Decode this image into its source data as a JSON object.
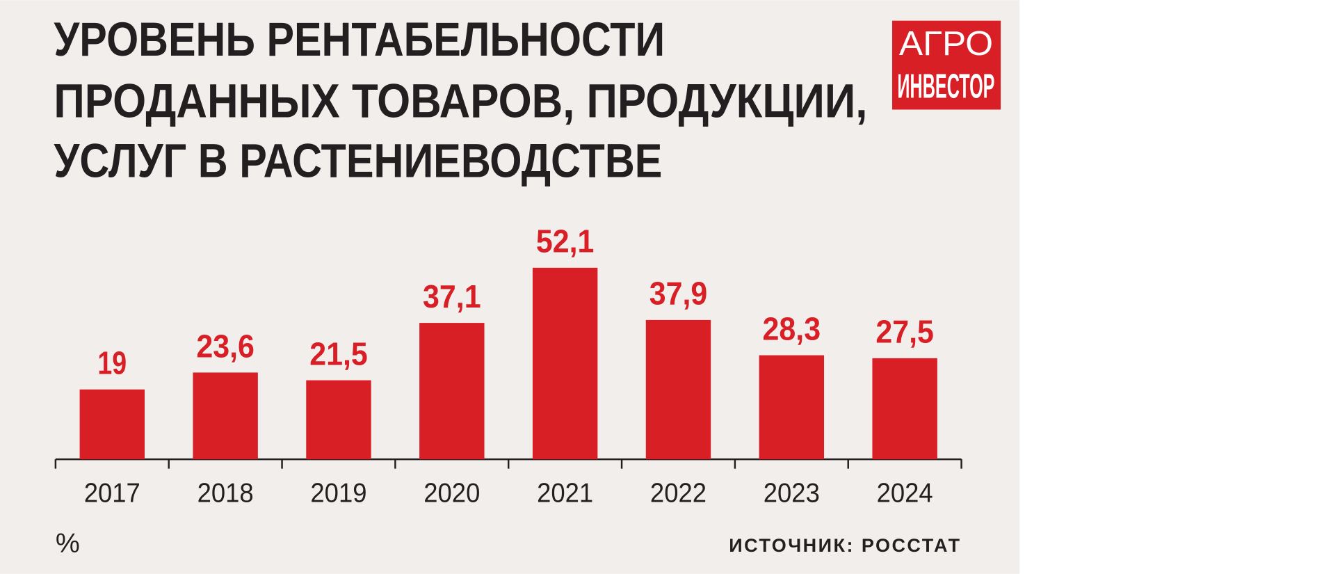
{
  "chart_data": {
    "type": "bar",
    "title": [
      "УРОВЕНЬ РЕНТАБЕЛЬНОСТИ",
      "ПРОДАННЫХ ТОВАРОВ, ПРОДУКЦИИ,",
      "УСЛУГ В РАСТЕНИЕВОДСТВЕ"
    ],
    "logo": [
      "АГРО",
      "ИНВЕСТОР"
    ],
    "categories": [
      "2017",
      "2018",
      "2019",
      "2020",
      "2021",
      "2022",
      "2023",
      "2024"
    ],
    "values": [
      19,
      23.6,
      21.5,
      37.1,
      52.1,
      37.9,
      28.3,
      27.5
    ],
    "value_labels": [
      "19",
      "23,6",
      "21,5",
      "37,1",
      "52,1",
      "37,9",
      "28,3",
      "27,5"
    ],
    "color": "#d81f26",
    "unit": "%",
    "source": "ИСТОЧНИК: РОССТАТ"
  }
}
